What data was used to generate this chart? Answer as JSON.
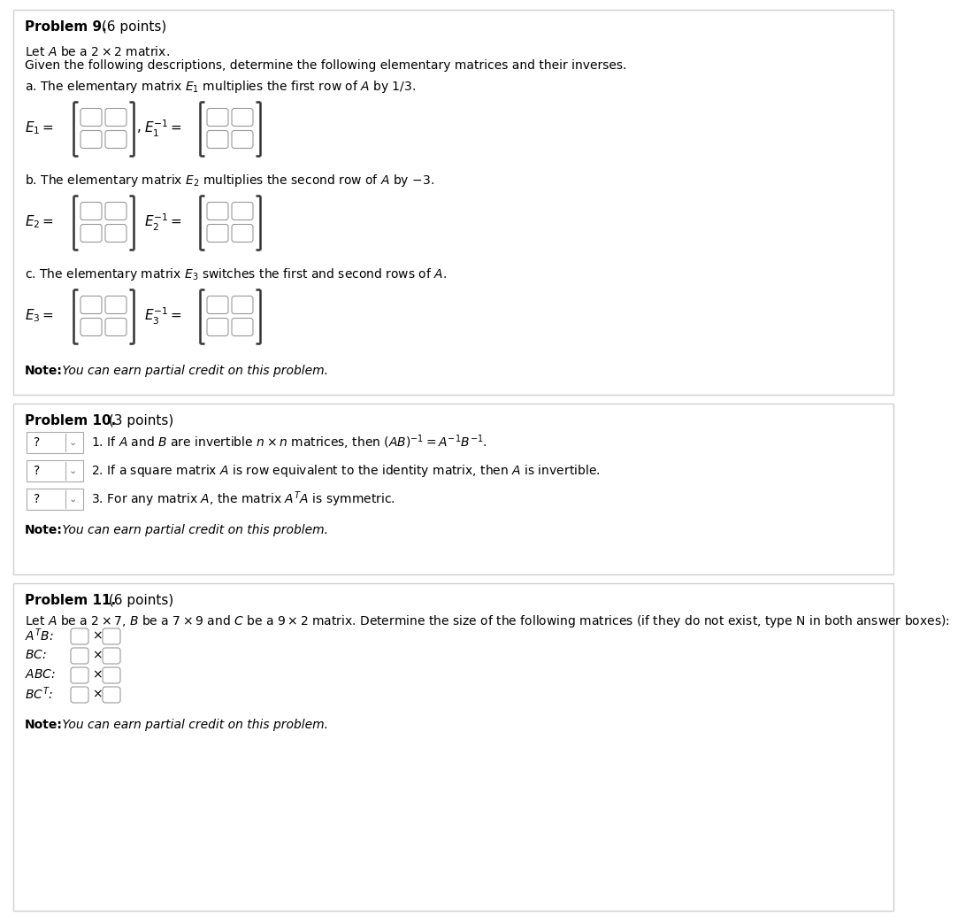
{
  "bg_color": "#ffffff",
  "border_color": "#c8c8c8",
  "p9_title": "Problem 9.",
  "p9_points": " (6 points)",
  "p9_line1": "Let $A$ be a $2 \\times 2$ matrix.",
  "p9_line2": "Given the following descriptions, determine the following elementary matrices and their inverses.",
  "p9a": "a. The elementary matrix $E_1$ multiplies the first row of $A$ by $1/3$.",
  "p9b": "b. The elementary matrix $E_2$ multiplies the second row of $A$ by $-3$.",
  "p9c": "c. The elementary matrix $E_3$ switches the first and second rows of $A$.",
  "p9_e1": "$E_1 =$",
  "p9_e1inv": "$E_1^{-1} =$",
  "p9_e2": "$E_2 =$",
  "p9_e2inv": "$E_2^{-1} =$",
  "p9_e3": "$E_3 =$",
  "p9_e3inv": "$E_3^{-1} =$",
  "note": "Note:",
  "note_text": " You can earn partial credit on this problem.",
  "p10_title": "Problem 10.",
  "p10_points": " (3 points)",
  "p10_s1": "1. If $A$ and $B$ are invertible $n \\times n$ matrices, then $(AB)^{-1} = A^{-1}B^{-1}$.",
  "p10_s2": "2. If a square matrix $A$ is row equivalent to the identity matrix, then $A$ is invertible.",
  "p10_s3": "3. For any matrix $A$, the matrix $A^T A$ is symmetric.",
  "p11_title": "Problem 11.",
  "p11_points": " (6 points)",
  "p11_line1": "Let $A$ be a $2 \\times 7$, $B$ be a $7 \\times 9$ and $C$ be a $9 \\times 2$ matrix. Determine the size of the following matrices (if they do not exist, type N in both answer boxes):",
  "p11_items": [
    "$A^T B$:",
    "$BC$:",
    "$ABC$:",
    "$BC^T$:"
  ],
  "box_edge": "#999999",
  "section_border": "#d0d0d0",
  "title_fs": 11,
  "body_fs": 10,
  "math_fs": 11
}
